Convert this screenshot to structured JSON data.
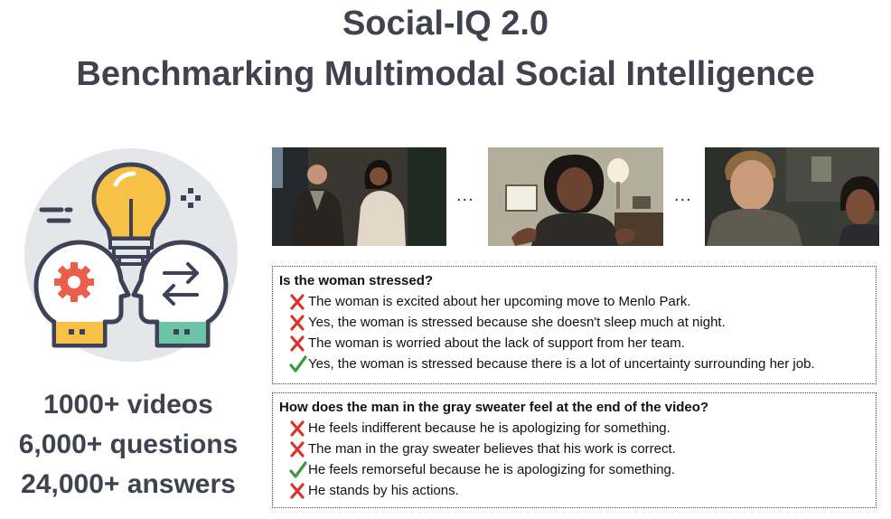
{
  "header": {
    "title": "Social-IQ 2.0",
    "subtitle": "Benchmarking Multimodal Social Intelligence"
  },
  "illustration": {
    "icons": [
      "lightbulb-icon",
      "gear-icon",
      "arrows-exchange-icon"
    ],
    "colors": {
      "circle": "#e4e6ea",
      "bulb": "#f6c146",
      "gear": "#e95f4a",
      "head_left": "#f6c146",
      "head_right": "#6cc3a5",
      "outline": "#3e4257"
    }
  },
  "stats": {
    "videos": "1000+ videos",
    "questions": "6,000+ questions",
    "answers": "24,000+ answers"
  },
  "frames": {
    "separator": "..."
  },
  "qa": [
    {
      "question": "Is the woman stressed?",
      "answers": [
        {
          "text": "The woman is excited about her upcoming move to Menlo Park.",
          "correct": false
        },
        {
          "text": "Yes, the woman is stressed because she doesn't sleep much at night.",
          "correct": false
        },
        {
          "text": "The woman is worried about the lack of support from her team.",
          "correct": false
        },
        {
          "text": "Yes, the woman is stressed because there is a lot of uncertainty surrounding her job.",
          "correct": true
        }
      ]
    },
    {
      "question": "How does the man in the gray sweater feel at the end of the video?",
      "answers": [
        {
          "text": "He feels indifferent because he is apologizing for something.",
          "correct": false
        },
        {
          "text": "The man in the gray sweater believes that his work is correct.",
          "correct": false
        },
        {
          "text": "He feels remorseful because he is apologizing for something.",
          "correct": true
        },
        {
          "text": "He stands by his actions.",
          "correct": false
        }
      ]
    }
  ],
  "colors": {
    "wrong": "#d9342b",
    "correct": "#3a9a3a",
    "title": "#40424f"
  }
}
